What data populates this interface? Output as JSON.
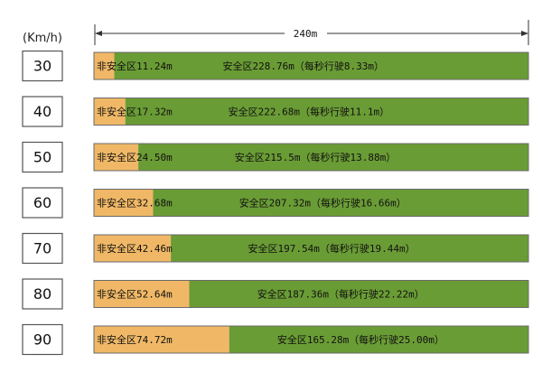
{
  "chart_data": {
    "type": "bar",
    "stacked": true,
    "orientation": "horizontal",
    "unit_label": "(Km/h)",
    "total_label": "240m",
    "total_m": 240,
    "categories": [
      "30",
      "40",
      "50",
      "60",
      "70",
      "80",
      "90"
    ],
    "series": [
      {
        "color": "#f0b866",
        "values": [
          11.24,
          17.32,
          24.5,
          32.68,
          42.46,
          52.64,
          74.72
        ],
        "labels": [
          "非安全区11.24m",
          "非安全区17.32m",
          "非安全区24.50m",
          "非安全区32.68m",
          "非安全区42.46m",
          "非安全区52.64m",
          "非安全区74.72m"
        ]
      },
      {
        "color": "#6a9c35",
        "values": [
          228.76,
          222.68,
          215.5,
          207.32,
          197.54,
          187.36,
          165.28
        ],
        "labels": [
          "安全区228.76m（每秒行驶8.33m）",
          "安全区222.68m（每秒行驶11.1m）",
          "安全区215.5m（每秒行驶13.88m）",
          "安全区207.32m（每秒行驶16.66m）",
          "安全区197.54m（每秒行驶19.44m）",
          "安全区187.36m（每秒行驶22.22m）",
          "安全区165.28m（每秒行驶25.00m）"
        ]
      }
    ]
  }
}
